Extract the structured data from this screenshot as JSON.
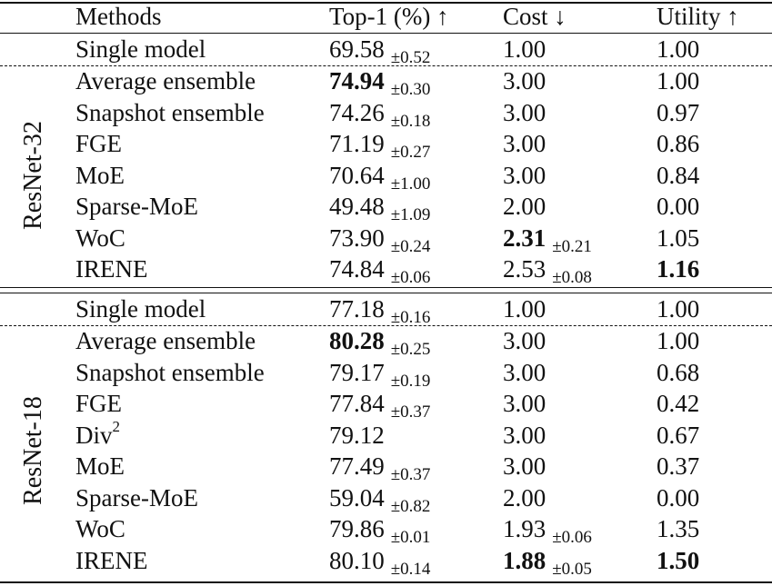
{
  "header": {
    "methods": "Methods",
    "top1": "Top-1 (%) ↑",
    "cost": "Cost ↓",
    "utility": "Utility ↑"
  },
  "groups": [
    {
      "label": "ResNet-32",
      "rows": [
        {
          "method": "Single model",
          "top1": "69.58",
          "top1_std": "±0.52",
          "cost": "1.00",
          "cost_std": "",
          "utility": "1.00"
        },
        {
          "method": "Average ensemble",
          "top1": "74.94",
          "top1_bold": true,
          "top1_std": "±0.30",
          "cost": "3.00",
          "cost_std": "",
          "utility": "1.00"
        },
        {
          "method": "Snapshot ensemble",
          "top1": "74.26",
          "top1_std": "±0.18",
          "cost": "3.00",
          "cost_std": "",
          "utility": "0.97"
        },
        {
          "method": "FGE",
          "top1": "71.19",
          "top1_std": "±0.27",
          "cost": "3.00",
          "cost_std": "",
          "utility": "0.86"
        },
        {
          "method": "MoE",
          "top1": "70.64",
          "top1_std": "±1.00",
          "cost": "3.00",
          "cost_std": "",
          "utility": "0.84"
        },
        {
          "method": "Sparse-MoE",
          "top1": "49.48",
          "top1_std": "±1.09",
          "cost": "2.00",
          "cost_std": "",
          "utility": "0.00"
        },
        {
          "method": "WoC",
          "top1": "73.90",
          "top1_std": "±0.24",
          "cost": "2.31",
          "cost_bold": true,
          "cost_std": "±0.21",
          "utility": "1.05"
        },
        {
          "method": "IRENE",
          "top1": "74.84",
          "top1_std": "±0.06",
          "cost": "2.53",
          "cost_std": "±0.08",
          "utility": "1.16",
          "utility_bold": true
        }
      ]
    },
    {
      "label": "ResNet-18",
      "rows": [
        {
          "method": "Single model",
          "top1": "77.18",
          "top1_std": "±0.16",
          "cost": "1.00",
          "cost_std": "",
          "utility": "1.00"
        },
        {
          "method": "Average ensemble",
          "top1": "80.28",
          "top1_bold": true,
          "top1_std": "±0.25",
          "cost": "3.00",
          "cost_std": "",
          "utility": "1.00"
        },
        {
          "method": "Snapshot ensemble",
          "top1": "79.17",
          "top1_std": "±0.19",
          "cost": "3.00",
          "cost_std": "",
          "utility": "0.68"
        },
        {
          "method": "FGE",
          "top1": "77.84",
          "top1_std": "±0.37",
          "cost": "3.00",
          "cost_std": "",
          "utility": "0.42"
        },
        {
          "method": "Div",
          "method_sup": "2",
          "top1": "79.12",
          "top1_std": "",
          "cost": "3.00",
          "cost_std": "",
          "utility": "0.67"
        },
        {
          "method": "MoE",
          "top1": "77.49",
          "top1_std": "±0.37",
          "cost": "3.00",
          "cost_std": "",
          "utility": "0.37"
        },
        {
          "method": "Sparse-MoE",
          "top1": "59.04",
          "top1_std": "±0.82",
          "cost": "2.00",
          "cost_std": "",
          "utility": "0.00"
        },
        {
          "method": "WoC",
          "top1": "79.86",
          "top1_std": "±0.01",
          "cost": "1.93",
          "cost_std": "±0.06",
          "utility": "1.35"
        },
        {
          "method": "IRENE",
          "top1": "80.10",
          "top1_std": "±0.14",
          "cost": "1.88",
          "cost_bold": true,
          "cost_std": "±0.05",
          "utility": "1.50",
          "utility_bold": true
        }
      ]
    }
  ]
}
